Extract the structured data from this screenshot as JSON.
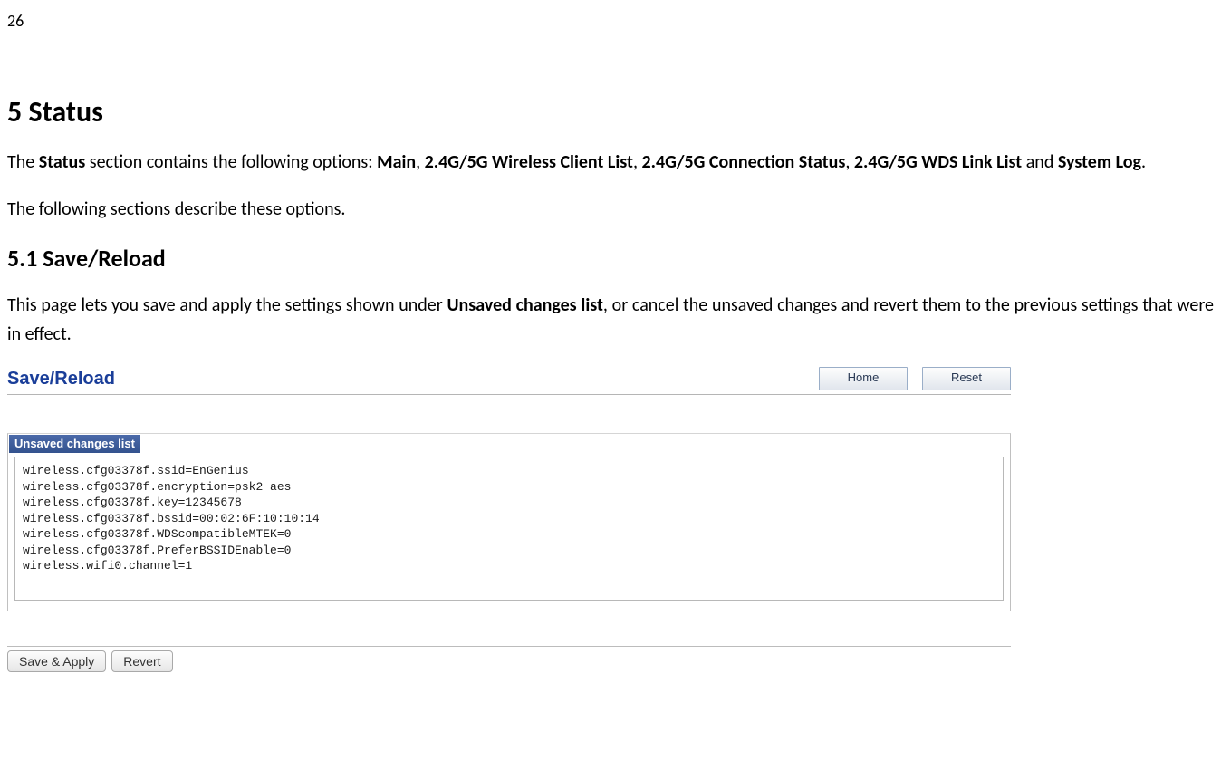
{
  "page": {
    "number": "26"
  },
  "section5": {
    "heading": "5    Status",
    "intro_prefix": "The ",
    "intro_bold1": "Status",
    "intro_mid1": " section contains the following options: ",
    "intro_bold2": "Main",
    "intro_sep1": ", ",
    "intro_bold3": "2.4G/5G Wireless Client List",
    "intro_sep2": ", ",
    "intro_bold4": "2.4G/5G Connection Status",
    "intro_sep3": ", ",
    "intro_bold5": "2.4G/5G WDS Link List",
    "intro_sep4": " and ",
    "intro_bold6": "System Log",
    "intro_suffix": ".",
    "intro_followup": "The following sections describe these options."
  },
  "section51": {
    "heading": "5.1   Save/Reload",
    "desc_prefix": "This page lets you save and apply the settings shown under ",
    "desc_bold": "Unsaved changes list",
    "desc_suffix": ", or cancel the unsaved changes and revert them to the previous settings that were in effect."
  },
  "ui": {
    "title": "Save/Reload",
    "home_btn": "Home",
    "reset_btn": "Reset",
    "changes_title": "Unsaved changes list",
    "changes_text": "wireless.cfg03378f.ssid=EnGenius\nwireless.cfg03378f.encryption=psk2 aes\nwireless.cfg03378f.key=12345678\nwireless.cfg03378f.bssid=00:02:6F:10:10:14\nwireless.cfg03378f.WDScompatibleMTEK=0\nwireless.cfg03378f.PreferBSSIDEnable=0\nwireless.wifi0.channel=1",
    "save_apply_btn": "Save & Apply",
    "revert_btn": "Revert"
  }
}
